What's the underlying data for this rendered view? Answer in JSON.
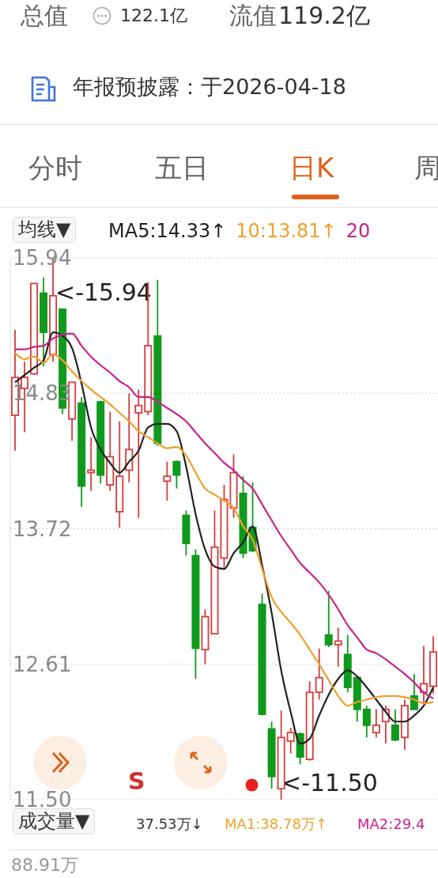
{
  "chart_data": {
    "type": "candlestick",
    "categories": [
      null,
      null,
      null,
      null,
      null,
      null,
      null,
      null,
      null,
      null,
      null,
      null,
      null,
      null,
      null,
      null,
      null,
      null,
      null,
      null,
      null,
      null,
      null,
      null,
      null,
      null,
      null,
      null,
      null,
      null,
      null,
      null,
      null,
      null,
      null,
      null,
      null,
      null,
      null,
      null,
      null,
      null,
      null,
      null,
      null
    ],
    "ohlc": [
      [
        14.65,
        15.35,
        14.36,
        14.96
      ],
      [
        14.87,
        15.09,
        14.51,
        14.96
      ],
      [
        14.99,
        15.73,
        14.98,
        15.73
      ],
      [
        15.65,
        15.78,
        15.05,
        15.33
      ],
      [
        15.15,
        15.94,
        15.09,
        15.63
      ],
      [
        15.52,
        15.52,
        14.66,
        14.71
      ],
      [
        14.62,
        14.92,
        14.44,
        14.92
      ],
      [
        14.75,
        14.8,
        13.9,
        14.07
      ],
      [
        14.18,
        14.47,
        14.03,
        14.2
      ],
      [
        14.76,
        14.77,
        14.09,
        14.16
      ],
      [
        14.08,
        14.68,
        14.03,
        14.31
      ],
      [
        13.86,
        14.6,
        13.73,
        14.15
      ],
      [
        14.2,
        14.83,
        14.1,
        14.37
      ],
      [
        14.67,
        14.86,
        13.81,
        14.73
      ],
      [
        14.68,
        15.74,
        14.65,
        15.22
      ],
      [
        15.3,
        15.76,
        14.4,
        14.42
      ],
      [
        14.11,
        14.27,
        13.95,
        14.15
      ],
      [
        14.27,
        14.28,
        14.05,
        14.16
      ],
      [
        13.83,
        13.87,
        13.5,
        13.6
      ],
      [
        13.5,
        13.55,
        12.49,
        12.74
      ],
      [
        12.73,
        13.06,
        12.61,
        13.0
      ],
      [
        12.86,
        13.87,
        12.86,
        13.57
      ],
      [
        13.48,
        14.08,
        13.4,
        13.96
      ],
      [
        13.89,
        14.33,
        13.81,
        14.18
      ],
      [
        14.01,
        14.15,
        13.48,
        13.52
      ],
      [
        13.73,
        14.1,
        13.53,
        13.54
      ],
      [
        13.1,
        13.19,
        12.19,
        12.2
      ],
      [
        12.08,
        12.14,
        11.59,
        11.69
      ],
      [
        11.59,
        12.23,
        11.5,
        12.01
      ],
      [
        11.98,
        12.09,
        11.88,
        12.05
      ],
      [
        12.04,
        12.05,
        11.79,
        11.85
      ],
      [
        11.83,
        12.47,
        11.82,
        12.38
      ],
      [
        12.38,
        12.74,
        12.32,
        12.5
      ],
      [
        12.85,
        13.21,
        12.75,
        12.77
      ],
      [
        12.77,
        12.91,
        12.59,
        12.8
      ],
      [
        12.69,
        12.85,
        12.38,
        12.42
      ],
      [
        12.5,
        12.51,
        12.14,
        12.24
      ],
      [
        12.24,
        12.27,
        12.01,
        12.11
      ],
      [
        12.05,
        12.24,
        12.01,
        12.11
      ],
      [
        12.14,
        12.27,
        11.96,
        12.24
      ],
      [
        12.11,
        12.24,
        11.98,
        11.99
      ],
      [
        12.01,
        12.32,
        11.91,
        12.27
      ],
      [
        12.35,
        12.53,
        12.24,
        12.24
      ],
      [
        12.38,
        12.76,
        12.29,
        12.45
      ],
      [
        12.43,
        12.84,
        12.37,
        12.71
      ]
    ],
    "colors": [
      "#d43c3c",
      "#d43c3c",
      "#d43c3c",
      "#0f9a1e",
      "#d43c3c",
      "#0f9a1e",
      "#d43c3c",
      "#0f9a1e",
      "#d43c3c",
      "#0f9a1e",
      "#d43c3c",
      "#d43c3c",
      "#d43c3c",
      "#d43c3c",
      "#d43c3c",
      "#0f9a1e",
      "#d43c3c",
      "#0f9a1e",
      "#0f9a1e",
      "#0f9a1e",
      "#d43c3c",
      "#d43c3c",
      "#d43c3c",
      "#d43c3c",
      "#0f9a1e",
      "#0f9a1e",
      "#0f9a1e",
      "#0f9a1e",
      "#d43c3c",
      "#d43c3c",
      "#0f9a1e",
      "#d43c3c",
      "#d43c3c",
      "#0f9a1e",
      "#d43c3c",
      "#0f9a1e",
      "#0f9a1e",
      "#0f9a1e",
      "#d43c3c",
      "#d43c3c",
      "#0f9a1e",
      "#d43c3c",
      "#0f9a1e",
      "#d43c3c",
      "#d43c3c"
    ],
    "series": [
      {
        "name": "MA5:14.33↑",
        "type": "line",
        "color": "#222222",
        "values": [
          14.92,
          14.98,
          15.04,
          15.1,
          15.33,
          15.3,
          15.2,
          14.91,
          14.55,
          14.37,
          14.26,
          14.18,
          14.27,
          14.36,
          14.55,
          14.58,
          14.58,
          14.52,
          14.23,
          13.84,
          13.55,
          13.41,
          13.39,
          13.52,
          13.61,
          13.74,
          13.42,
          13.03,
          12.56,
          12.22,
          11.96,
          12.0,
          12.19,
          12.36,
          12.49,
          12.56,
          12.51,
          12.42,
          12.32,
          12.22,
          12.14,
          12.14,
          12.19,
          12.27,
          12.42
        ]
      },
      {
        "name": "10:13.81↑",
        "type": "line",
        "color": "#f0a02c",
        "values": [
          15.16,
          15.11,
          15.13,
          15.08,
          15.15,
          15.1,
          15.01,
          14.93,
          14.86,
          14.8,
          14.74,
          14.67,
          14.6,
          14.52,
          14.47,
          14.42,
          14.38,
          14.39,
          14.32,
          14.18,
          14.05,
          14.0,
          13.95,
          13.89,
          13.74,
          13.63,
          13.39,
          13.16,
          13.04,
          12.95,
          12.85,
          12.73,
          12.61,
          12.48,
          12.35,
          12.27,
          12.3,
          12.32,
          12.34,
          12.35,
          12.35,
          12.34,
          12.32,
          12.29,
          12.3
        ]
      },
      {
        "name": "20",
        "type": "line",
        "color": "#c8238c",
        "values": [
          15.19,
          15.19,
          15.21,
          15.22,
          15.28,
          15.31,
          15.32,
          15.22,
          15.13,
          15.06,
          15.0,
          14.93,
          14.88,
          14.8,
          14.8,
          14.76,
          14.71,
          14.66,
          14.6,
          14.51,
          14.42,
          14.34,
          14.26,
          14.2,
          14.12,
          14.05,
          13.92,
          13.79,
          13.66,
          13.55,
          13.44,
          13.36,
          13.28,
          13.18,
          13.06,
          12.93,
          12.83,
          12.73,
          12.7,
          12.65,
          12.59,
          12.53,
          12.46,
          12.38,
          12.33
        ]
      }
    ],
    "ylim": [
      11.5,
      15.94
    ],
    "yticks": [
      15.94,
      14.83,
      13.72,
      12.61,
      {
        "value": 11.5,
        "label": "11.50"
      }
    ],
    "grid": "y",
    "legend": "top",
    "line_style": "solid",
    "annotations": [
      "总值",
      "122.1亿",
      "流值",
      "119.2亿",
      "年报预披露：于2026-04-18",
      "分时",
      "五日",
      "日K",
      "周",
      "均线▼",
      "<-15.94",
      "<-11.50",
      "S",
      "成交量▼",
      "37.53万↓",
      "MA1:38.78万↑",
      "MA2:29.4",
      "88.91万"
    ]
  }
}
